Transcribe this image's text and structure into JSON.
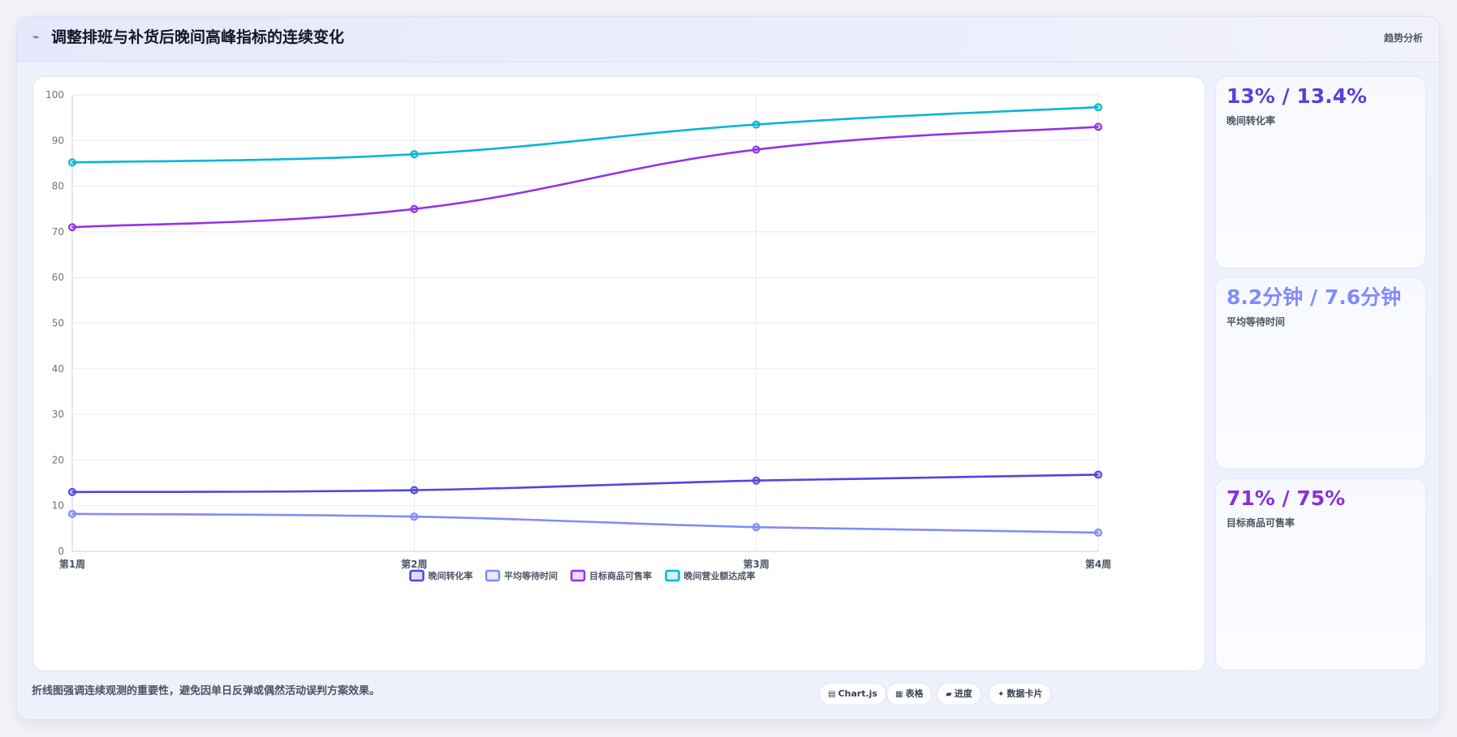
{
  "header": {
    "title": "调整排班与补货后晚间高峰指标的连续变化",
    "badge": "趋势分析",
    "icon": "trend-icon"
  },
  "chart_data": {
    "type": "line",
    "title": "",
    "xlabel": "",
    "ylabel": "",
    "categories": [
      "第1周",
      "第2周",
      "第3周",
      "第4周"
    ],
    "ylim": [
      0,
      100
    ],
    "yticks": [
      0,
      10,
      20,
      30,
      40,
      50,
      60,
      70,
      80,
      90,
      100
    ],
    "grid": true,
    "legend_position": "bottom",
    "series": [
      {
        "name": "晚间转化率",
        "color": "#4f46e5",
        "values": [
          13,
          13.4,
          15.5,
          16.8
        ]
      },
      {
        "name": "平均等待时间",
        "color": "#818cf8",
        "values": [
          8.2,
          7.6,
          5.3,
          4.1
        ]
      },
      {
        "name": "目标商品可售率",
        "color": "#9333ea",
        "values": [
          71,
          75,
          88,
          93
        ]
      },
      {
        "name": "晚间营业额达成率",
        "color": "#06b6d4",
        "values": [
          85.2,
          87,
          93.5,
          97.3
        ]
      }
    ]
  },
  "kpis": [
    {
      "value": "13% / 13.4%",
      "label": "晚间转化率",
      "color": "#5b3fd6"
    },
    {
      "value": "8.2分钟 / 7.6分钟",
      "label": "平均等待时间",
      "color": "#818cf8"
    },
    {
      "value": "71% / 75%",
      "label": "目标商品可售率",
      "color": "#8b2fd9"
    }
  ],
  "footer": {
    "note": "折线图强调连续观测的重要性，避免因单日反弹或偶然活动误判方案效果。",
    "chips": [
      {
        "icon": "▤",
        "label": "Chart.js"
      },
      {
        "icon": "▦",
        "label": "表格"
      },
      {
        "icon": "▰",
        "label": "进度"
      },
      {
        "icon": "✦",
        "label": "数据卡片"
      }
    ]
  }
}
